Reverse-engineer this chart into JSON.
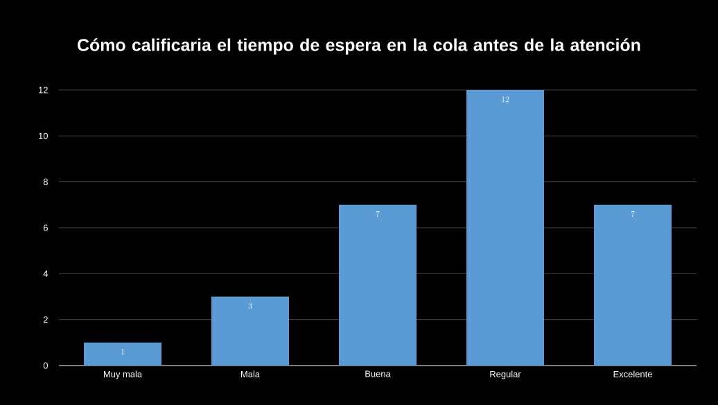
{
  "chart_data": {
    "type": "bar",
    "title": "Cómo calificaria el tiempo de espera en la cola antes de la atención",
    "categories": [
      "Muy mala",
      "Mala",
      "Buena",
      "Regular",
      "Excelente"
    ],
    "values": [
      1,
      3,
      7,
      12,
      7
    ],
    "color": "#5b9bd5",
    "ylim": [
      0,
      12
    ],
    "yticks": [
      0,
      2,
      4,
      6,
      8,
      10,
      12
    ],
    "grid": "y",
    "data_labels": true
  }
}
